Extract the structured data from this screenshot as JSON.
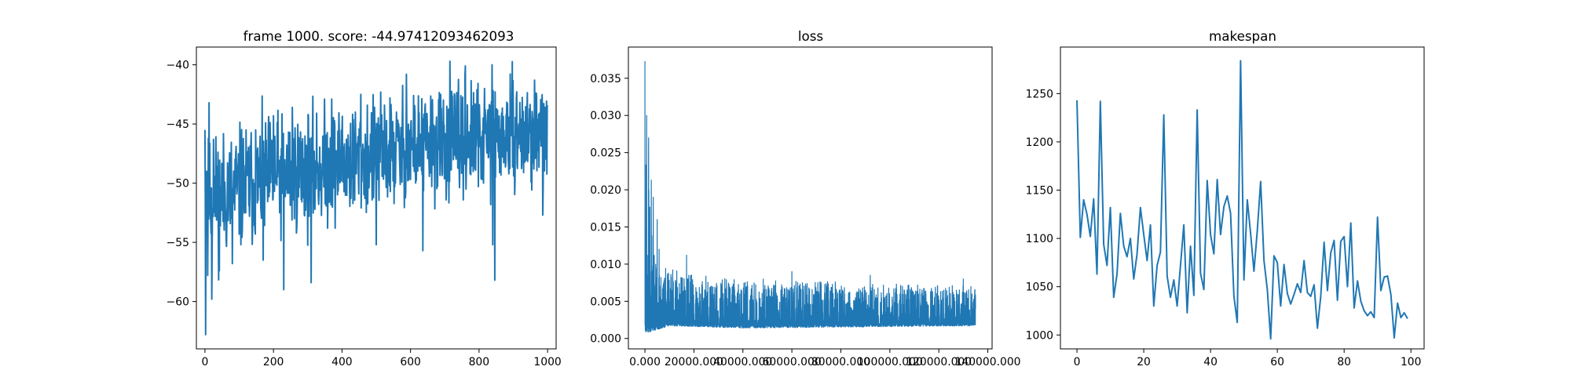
{
  "figure": {
    "background": "#ffffff",
    "series_color": "#1f77b4"
  },
  "chart_data": [
    {
      "type": "line",
      "title": "frame 1000. score: -44.97412093462093",
      "xlabel": "",
      "ylabel": "",
      "xlim": [
        -25,
        1025
      ],
      "ylim": [
        -64,
        -38.5
      ],
      "xticks": [
        0,
        200,
        400,
        600,
        800,
        1000
      ],
      "yticks": [
        -60,
        -55,
        -50,
        -45,
        -40
      ],
      "series": [
        {
          "kind": "noisy",
          "n": 1000,
          "x_start": 0,
          "x_end": 999,
          "seed": 11,
          "trend": [
            [
              0,
              -51.5
            ],
            [
              200,
              -49.5
            ],
            [
              400,
              -48.3
            ],
            [
              600,
              -47.0
            ],
            [
              800,
              -46.3
            ],
            [
              999,
              -45.7
            ]
          ],
          "amplitude": [
            [
              0,
              5.2
            ],
            [
              999,
              4.2
            ]
          ],
          "points": [
            [
              0,
              -45.5
            ],
            [
              2,
              -62.8
            ],
            [
              5,
              -49.0
            ],
            [
              8,
              -57.8
            ],
            [
              12,
              -43.2
            ],
            [
              15,
              -52.5
            ],
            [
              20,
              -59.8
            ],
            [
              25,
              -46.3
            ],
            [
              42,
              -57.4
            ],
            [
              80,
              -56.8
            ],
            [
              148,
              -45.5
            ],
            [
              170,
              -56.5
            ],
            [
              200,
              -44.3
            ],
            [
              230,
              -59.0
            ],
            [
              255,
              -43.6
            ],
            [
              310,
              -58.4
            ],
            [
              370,
              -42.9
            ],
            [
              400,
              -45.6
            ],
            [
              455,
              -42.5
            ],
            [
              500,
              -55.2
            ],
            [
              588,
              -40.8
            ],
            [
              610,
              -46.1
            ],
            [
              636,
              -55.7
            ],
            [
              715,
              -39.7
            ],
            [
              760,
              -40.1
            ],
            [
              838,
              -40.0
            ],
            [
              840,
              -55.2
            ],
            [
              846,
              -58.2
            ],
            [
              900,
              -43.8
            ],
            [
              962,
              -41.3
            ],
            [
              986,
              -52.7
            ],
            [
              999,
              -43.4
            ]
          ]
        }
      ]
    },
    {
      "type": "line",
      "title": "loss",
      "xlabel": "",
      "ylabel": "",
      "xlim": [
        -6750,
        141750
      ],
      "ylim": [
        -0.0014,
        0.0392
      ],
      "xticks": [
        0,
        20000,
        40000,
        60000,
        80000,
        100000,
        120000,
        140000
      ],
      "yticks": [
        0.0,
        0.005,
        0.01,
        0.015,
        0.02,
        0.025,
        0.03,
        0.035
      ],
      "series": [
        {
          "kind": "band",
          "n": 2700,
          "x_start": 0,
          "x_end": 135000,
          "seed": 23,
          "low": [
            [
              0,
              0.0005
            ],
            [
              3000,
              0.001
            ],
            [
              10000,
              0.0017
            ],
            [
              40000,
              0.0014
            ],
            [
              135000,
              0.0017
            ]
          ],
          "high": [
            [
              0,
              0.029
            ],
            [
              1500,
              0.023
            ],
            [
              3000,
              0.013
            ],
            [
              6000,
              0.01
            ],
            [
              20000,
              0.0085
            ],
            [
              60000,
              0.0078
            ],
            [
              135000,
              0.007
            ]
          ],
          "points": [
            [
              0,
              0.0373
            ],
            [
              700,
              0.03
            ],
            [
              1500,
              0.027
            ],
            [
              2600,
              0.0213
            ],
            [
              3400,
              0.019
            ],
            [
              5000,
              0.016
            ],
            [
              5800,
              0.012
            ],
            [
              17000,
              0.0112
            ],
            [
              60000,
              0.009
            ],
            [
              92000,
              0.0085
            ],
            [
              130000,
              0.008
            ],
            [
              135000,
              0.004
            ]
          ]
        }
      ]
    },
    {
      "type": "line",
      "title": "makespan",
      "xlabel": "",
      "ylabel": "",
      "xlim": [
        -4.95,
        103.95
      ],
      "ylim": [
        985.6,
        1298.2
      ],
      "xticks": [
        0,
        20,
        40,
        60,
        80,
        100
      ],
      "yticks": [
        1000,
        1050,
        1100,
        1150,
        1200,
        1250
      ],
      "x": [
        0,
        1,
        2,
        3,
        4,
        5,
        6,
        7,
        8,
        9,
        10,
        11,
        12,
        13,
        14,
        15,
        16,
        17,
        18,
        19,
        20,
        21,
        22,
        23,
        24,
        25,
        26,
        27,
        28,
        29,
        30,
        31,
        32,
        33,
        34,
        35,
        36,
        37,
        38,
        39,
        40,
        41,
        42,
        43,
        44,
        45,
        46,
        47,
        48,
        49,
        50,
        51,
        52,
        53,
        54,
        55,
        56,
        57,
        58,
        59,
        60,
        61,
        62,
        63,
        64,
        65,
        66,
        67,
        68,
        69,
        70,
        71,
        72,
        73,
        74,
        75,
        76,
        77,
        78,
        79,
        80,
        81,
        82,
        83,
        84,
        85,
        86,
        87,
        88,
        89,
        90,
        91,
        92,
        93,
        94,
        95,
        96,
        97,
        98,
        99
      ],
      "series": [
        {
          "kind": "line",
          "values": [
            1243,
            1101,
            1140,
            1125,
            1102,
            1141,
            1063,
            1242,
            1094,
            1072,
            1132,
            1039,
            1063,
            1126,
            1092,
            1081,
            1100,
            1058,
            1084,
            1132,
            1104,
            1077,
            1114,
            1030,
            1072,
            1086,
            1228,
            1061,
            1039,
            1057,
            1030,
            1072,
            1114,
            1023,
            1092,
            1041,
            1233,
            1064,
            1047,
            1160,
            1104,
            1084,
            1161,
            1104,
            1133,
            1144,
            1126,
            1040,
            1013,
            1284,
            1057,
            1140,
            1105,
            1066,
            1108,
            1159,
            1077,
            1047,
            996,
            1082,
            1075,
            1030,
            1073,
            1043,
            1032,
            1042,
            1053,
            1044,
            1077,
            1044,
            1040,
            1052,
            1007,
            1040,
            1096,
            1046,
            1085,
            1098,
            1036,
            1097,
            1102,
            1050,
            1116,
            1028,
            1056,
            1035,
            1025,
            1020,
            1024,
            1018,
            1122,
            1046,
            1060,
            1061,
            1042,
            997,
            1033,
            1018,
            1023,
            1017
          ]
        }
      ]
    }
  ]
}
